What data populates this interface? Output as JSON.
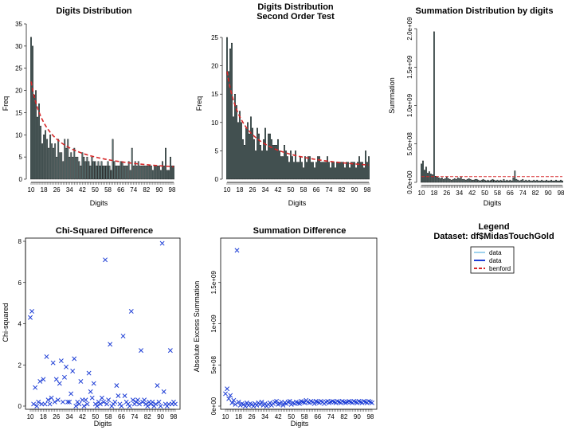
{
  "colors": {
    "bar_fill": "#5f7878",
    "bar_stroke": "#000000",
    "benford": "#d62728",
    "points": "#1f3fd6",
    "legend_data1": "#7fc4e8",
    "legend_data2": "#1f3fd6"
  },
  "x_ticks": [
    "10",
    "18",
    "26",
    "34",
    "42",
    "50",
    "58",
    "66",
    "74",
    "82",
    "90",
    "98"
  ],
  "chart_data": [
    {
      "id": "digits",
      "type": "bar",
      "title": "Digits Distribution",
      "subtitle": "",
      "xlabel": "Digits",
      "ylabel": "Freq",
      "ylim": [
        0,
        35
      ],
      "yticks": [
        "0",
        "5",
        "10",
        "15",
        "20",
        "25",
        "30",
        "35"
      ],
      "values": [
        32,
        30,
        19,
        20,
        14,
        17,
        12,
        8,
        10,
        11,
        9,
        7,
        10,
        8,
        7,
        8,
        5,
        9,
        6,
        6,
        4,
        9,
        7,
        9,
        5,
        6,
        5,
        7,
        5,
        5,
        4,
        3,
        6,
        5,
        4,
        5,
        4,
        3,
        5,
        4,
        4,
        3,
        4,
        3,
        4,
        3,
        3,
        3,
        4,
        3,
        2,
        9,
        4,
        3,
        3,
        3,
        4,
        4,
        3,
        3,
        3,
        4,
        2,
        7,
        3,
        4,
        3,
        4,
        3,
        3,
        3,
        3,
        3,
        3,
        3,
        3,
        2,
        3,
        3,
        3,
        3,
        2,
        4,
        3,
        7,
        2,
        2,
        5,
        3,
        3
      ],
      "benford_start": 22.0,
      "benford_end": 2.8
    },
    {
      "id": "second_order",
      "type": "bar",
      "title": "Digits Distribution",
      "subtitle": "Second Order Test",
      "xlabel": "Digits",
      "ylabel": "Freq",
      "ylim": [
        0,
        25
      ],
      "yticks": [
        "0",
        "5",
        "10",
        "15",
        "20",
        "25"
      ],
      "values": [
        25,
        19,
        23,
        24,
        11,
        15,
        13,
        10,
        12,
        10,
        7,
        6,
        9,
        10,
        8,
        11,
        9,
        7,
        5,
        9,
        8,
        6,
        5,
        7,
        9,
        5,
        8,
        8,
        7,
        6,
        6,
        6,
        7,
        5,
        4,
        4,
        6,
        5,
        4,
        3,
        5,
        4,
        3,
        5,
        3,
        3,
        4,
        3,
        2,
        4,
        3,
        4,
        4,
        3,
        3,
        2,
        3,
        4,
        4,
        3,
        3,
        3,
        3,
        4,
        3,
        2,
        3,
        3,
        2,
        3,
        3,
        3,
        3,
        3,
        2,
        3,
        3,
        2,
        3,
        3,
        3,
        2,
        3,
        4,
        3,
        3,
        2,
        5,
        3,
        4
      ],
      "benford_start": 19.0,
      "benford_end": 2.5
    },
    {
      "id": "summation",
      "type": "bar",
      "title": "Summation Distribution by digits",
      "subtitle": "",
      "xlabel": "Digits",
      "ylabel": "Summation",
      "ylim": [
        0,
        2000000000
      ],
      "yticks": [
        "0.0e+00",
        "5.0e+08",
        "1.0e+09",
        "1.5e+09",
        "2.0e+09"
      ],
      "values": [
        240000000,
        280000000,
        160000000,
        200000000,
        120000000,
        140000000,
        110000000,
        100000000,
        1960000000,
        80000000,
        70000000,
        60000000,
        50000000,
        60000000,
        40000000,
        50000000,
        70000000,
        50000000,
        40000000,
        30000000,
        40000000,
        50000000,
        40000000,
        60000000,
        50000000,
        70000000,
        40000000,
        40000000,
        30000000,
        40000000,
        50000000,
        40000000,
        30000000,
        30000000,
        40000000,
        40000000,
        30000000,
        20000000,
        30000000,
        40000000,
        30000000,
        20000000,
        30000000,
        20000000,
        30000000,
        40000000,
        30000000,
        20000000,
        30000000,
        20000000,
        30000000,
        20000000,
        40000000,
        20000000,
        30000000,
        20000000,
        30000000,
        20000000,
        60000000,
        150000000,
        40000000,
        30000000,
        20000000,
        30000000,
        40000000,
        20000000,
        30000000,
        20000000,
        30000000,
        20000000,
        20000000,
        30000000,
        20000000,
        30000000,
        20000000,
        20000000,
        30000000,
        20000000,
        20000000,
        30000000,
        20000000,
        20000000,
        30000000,
        20000000,
        20000000,
        30000000,
        20000000,
        20000000,
        30000000,
        20000000
      ],
      "benford_value": 75000000
    },
    {
      "id": "chi_squared",
      "type": "scatter",
      "title": "Chi-Squared Difference",
      "xlabel": "Digits",
      "ylabel": "Chi-squared",
      "ylim": [
        0,
        8
      ],
      "yticks": [
        "0",
        "2",
        "4",
        "6",
        "8"
      ],
      "points": [
        [
          10,
          4.3
        ],
        [
          11,
          4.6
        ],
        [
          12,
          0.1
        ],
        [
          13,
          0.9
        ],
        [
          14,
          0.0
        ],
        [
          15,
          0.2
        ],
        [
          16,
          1.2
        ],
        [
          17,
          0.1
        ],
        [
          18,
          1.3
        ],
        [
          19,
          0.1
        ],
        [
          20,
          2.4
        ],
        [
          21,
          0.3
        ],
        [
          22,
          0.1
        ],
        [
          23,
          0.4
        ],
        [
          24,
          2.1
        ],
        [
          25,
          0.2
        ],
        [
          26,
          1.3
        ],
        [
          27,
          0.3
        ],
        [
          28,
          1.1
        ],
        [
          29,
          2.2
        ],
        [
          30,
          0.2
        ],
        [
          31,
          1.4
        ],
        [
          32,
          1.9
        ],
        [
          33,
          0.2
        ],
        [
          34,
          0.2
        ],
        [
          35,
          0.6
        ],
        [
          36,
          1.7
        ],
        [
          37,
          2.3
        ],
        [
          38,
          0.0
        ],
        [
          39,
          0.2
        ],
        [
          40,
          0.1
        ],
        [
          41,
          1.2
        ],
        [
          42,
          0.3
        ],
        [
          43,
          0.0
        ],
        [
          44,
          0.3
        ],
        [
          45,
          0.1
        ],
        [
          46,
          1.6
        ],
        [
          47,
          0.7
        ],
        [
          48,
          0.4
        ],
        [
          49,
          1.1
        ],
        [
          50,
          0.1
        ],
        [
          51,
          0.0
        ],
        [
          52,
          0.2
        ],
        [
          53,
          0.1
        ],
        [
          54,
          0.4
        ],
        [
          55,
          0.2
        ],
        [
          56,
          7.1
        ],
        [
          57,
          0.1
        ],
        [
          58,
          0.3
        ],
        [
          59,
          3.0
        ],
        [
          60,
          0.0
        ],
        [
          61,
          0.1
        ],
        [
          62,
          0.2
        ],
        [
          63,
          1.0
        ],
        [
          64,
          0.5
        ],
        [
          65,
          0.1
        ],
        [
          66,
          0.0
        ],
        [
          67,
          3.4
        ],
        [
          68,
          0.5
        ],
        [
          69,
          0.2
        ],
        [
          70,
          0.1
        ],
        [
          71,
          0.0
        ],
        [
          72,
          4.6
        ],
        [
          73,
          0.3
        ],
        [
          74,
          0.1
        ],
        [
          75,
          0.2
        ],
        [
          76,
          0.3
        ],
        [
          77,
          0.1
        ],
        [
          78,
          2.7
        ],
        [
          79,
          0.2
        ],
        [
          80,
          0.3
        ],
        [
          81,
          0.1
        ],
        [
          82,
          0.0
        ],
        [
          83,
          0.2
        ],
        [
          84,
          0.1
        ],
        [
          85,
          0.2
        ],
        [
          86,
          0.0
        ],
        [
          87,
          0.1
        ],
        [
          88,
          1.0
        ],
        [
          89,
          0.2
        ],
        [
          90,
          0.0
        ],
        [
          91,
          7.9
        ],
        [
          92,
          0.7
        ],
        [
          93,
          0.1
        ],
        [
          94,
          0.0
        ],
        [
          95,
          0.1
        ],
        [
          96,
          2.7
        ],
        [
          97,
          0.1
        ],
        [
          98,
          0.2
        ],
        [
          99,
          0.1
        ]
      ]
    },
    {
      "id": "summation_difference",
      "type": "scatter",
      "title": "Summation Difference",
      "xlabel": "Digits",
      "ylabel": "Absolute Excess Summation",
      "ylim": [
        0,
        2000000000
      ],
      "yticks": [
        "0e+00",
        "5e+08",
        "1e+09",
        "1.5e+09"
      ],
      "points": [
        [
          10,
          150000000
        ],
        [
          11,
          210000000
        ],
        [
          12,
          90000000
        ],
        [
          13,
          130000000
        ],
        [
          14,
          40000000
        ],
        [
          15,
          70000000
        ],
        [
          16,
          20000000
        ],
        [
          17,
          1890000000
        ],
        [
          18,
          50000000
        ],
        [
          19,
          10000000
        ],
        [
          20,
          30000000
        ],
        [
          21,
          20000000
        ],
        [
          22,
          0
        ],
        [
          23,
          40000000
        ],
        [
          24,
          10000000
        ],
        [
          25,
          30000000
        ],
        [
          26,
          20000000
        ],
        [
          27,
          0
        ],
        [
          28,
          30000000
        ],
        [
          29,
          10000000
        ],
        [
          30,
          40000000
        ],
        [
          31,
          20000000
        ],
        [
          32,
          50000000
        ],
        [
          33,
          10000000
        ],
        [
          34,
          30000000
        ],
        [
          35,
          0
        ],
        [
          36,
          20000000
        ],
        [
          37,
          40000000
        ],
        [
          38,
          10000000
        ],
        [
          39,
          30000000
        ],
        [
          40,
          50000000
        ],
        [
          41,
          60000000
        ],
        [
          42,
          20000000
        ],
        [
          43,
          30000000
        ],
        [
          44,
          50000000
        ],
        [
          45,
          10000000
        ],
        [
          46,
          40000000
        ],
        [
          47,
          30000000
        ],
        [
          48,
          50000000
        ],
        [
          49,
          60000000
        ],
        [
          50,
          20000000
        ],
        [
          51,
          40000000
        ],
        [
          52,
          30000000
        ],
        [
          53,
          50000000
        ],
        [
          54,
          40000000
        ],
        [
          55,
          30000000
        ],
        [
          56,
          60000000
        ],
        [
          57,
          50000000
        ],
        [
          58,
          40000000
        ],
        [
          59,
          70000000
        ],
        [
          60,
          50000000
        ],
        [
          61,
          40000000
        ],
        [
          62,
          60000000
        ],
        [
          63,
          50000000
        ],
        [
          64,
          30000000
        ],
        [
          65,
          60000000
        ],
        [
          66,
          50000000
        ],
        [
          67,
          40000000
        ],
        [
          68,
          60000000
        ],
        [
          69,
          50000000
        ],
        [
          70,
          30000000
        ],
        [
          71,
          50000000
        ],
        [
          72,
          60000000
        ],
        [
          73,
          40000000
        ],
        [
          74,
          50000000
        ],
        [
          75,
          60000000
        ],
        [
          76,
          50000000
        ],
        [
          77,
          40000000
        ],
        [
          78,
          60000000
        ],
        [
          79,
          50000000
        ],
        [
          80,
          40000000
        ],
        [
          81,
          60000000
        ],
        [
          82,
          50000000
        ],
        [
          83,
          40000000
        ],
        [
          84,
          50000000
        ],
        [
          85,
          60000000
        ],
        [
          86,
          50000000
        ],
        [
          87,
          40000000
        ],
        [
          88,
          60000000
        ],
        [
          89,
          50000000
        ],
        [
          90,
          40000000
        ],
        [
          91,
          60000000
        ],
        [
          92,
          50000000
        ],
        [
          93,
          40000000
        ],
        [
          94,
          60000000
        ],
        [
          95,
          50000000
        ],
        [
          96,
          40000000
        ],
        [
          97,
          60000000
        ],
        [
          98,
          50000000
        ],
        [
          99,
          40000000
        ]
      ]
    }
  ],
  "legend": {
    "title": "Legend",
    "subtitle": "Dataset: df$MidasTouchGold",
    "entries": [
      "data",
      "data",
      "benford"
    ]
  }
}
